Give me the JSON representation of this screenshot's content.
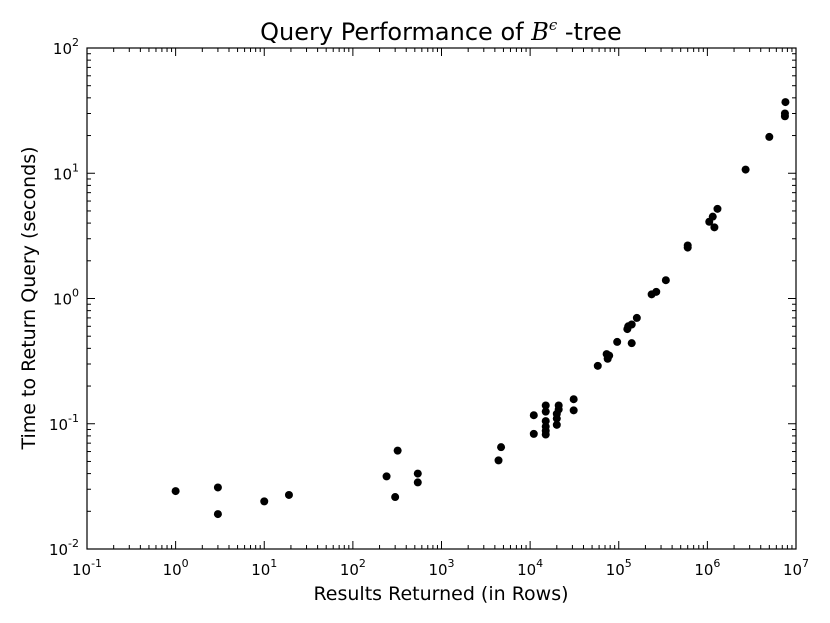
{
  "chart_data": {
    "type": "scatter",
    "title_prefix": "Query Performance of ",
    "title_symbol": "B",
    "title_superscript": "ϵ",
    "title_suffix": " -tree",
    "xlabel": "Results Returned (in Rows)",
    "ylabel": "Time to Return Query (seconds)",
    "x_scale": "log",
    "y_scale": "log",
    "xlim": [
      0.1,
      10000000
    ],
    "ylim": [
      0.01,
      100
    ],
    "x_ticks": [
      {
        "base": "10",
        "exp": "-1"
      },
      {
        "base": "10",
        "exp": "0"
      },
      {
        "base": "10",
        "exp": "1"
      },
      {
        "base": "10",
        "exp": "2"
      },
      {
        "base": "10",
        "exp": "3"
      },
      {
        "base": "10",
        "exp": "4"
      },
      {
        "base": "10",
        "exp": "5"
      },
      {
        "base": "10",
        "exp": "6"
      },
      {
        "base": "10",
        "exp": "7"
      }
    ],
    "y_ticks": [
      {
        "base": "10",
        "exp": "-2"
      },
      {
        "base": "10",
        "exp": "-1"
      },
      {
        "base": "10",
        "exp": "0"
      },
      {
        "base": "10",
        "exp": "1"
      },
      {
        "base": "10",
        "exp": "2"
      }
    ],
    "grid": false,
    "marker_color": "#000000",
    "points": [
      [
        1,
        0.029
      ],
      [
        3,
        0.031
      ],
      [
        3,
        0.019
      ],
      [
        10,
        0.024
      ],
      [
        19,
        0.027
      ],
      [
        240,
        0.038
      ],
      [
        300,
        0.026
      ],
      [
        320,
        0.061
      ],
      [
        540,
        0.04
      ],
      [
        540,
        0.034
      ],
      [
        4400,
        0.051
      ],
      [
        4700,
        0.065
      ],
      [
        11000,
        0.083
      ],
      [
        11000,
        0.117
      ],
      [
        15000,
        0.082
      ],
      [
        15000,
        0.088
      ],
      [
        15000,
        0.095
      ],
      [
        15000,
        0.105
      ],
      [
        15000,
        0.125
      ],
      [
        15000,
        0.14
      ],
      [
        20000,
        0.098
      ],
      [
        20000,
        0.11
      ],
      [
        20000,
        0.12
      ],
      [
        21000,
        0.13
      ],
      [
        21000,
        0.14
      ],
      [
        31000,
        0.128
      ],
      [
        31000,
        0.157
      ],
      [
        58000,
        0.29
      ],
      [
        73000,
        0.36
      ],
      [
        75000,
        0.33
      ],
      [
        78000,
        0.35
      ],
      [
        96000,
        0.45
      ],
      [
        125000,
        0.57
      ],
      [
        128000,
        0.6
      ],
      [
        140000,
        0.62
      ],
      [
        140000,
        0.44
      ],
      [
        160000,
        0.7
      ],
      [
        235000,
        1.08
      ],
      [
        265000,
        1.13
      ],
      [
        340000,
        1.4
      ],
      [
        600000,
        2.55
      ],
      [
        600000,
        2.65
      ],
      [
        1050000,
        4.1
      ],
      [
        1150000,
        4.5
      ],
      [
        1200000,
        3.7
      ],
      [
        1300000,
        5.2
      ],
      [
        2700000,
        10.7
      ],
      [
        5000000,
        19.5
      ],
      [
        7500000,
        28.5
      ],
      [
        7500000,
        30.0
      ],
      [
        7600000,
        37.0
      ]
    ]
  }
}
